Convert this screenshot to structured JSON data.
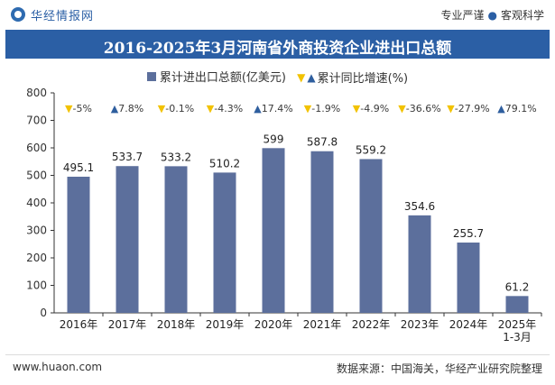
{
  "header": {
    "brand": "华经情报网",
    "tagline_left": "专业严谨",
    "tagline_right": "客观科学"
  },
  "chart_data": {
    "type": "bar",
    "title": "2016-2025年3月河南省外商投资企业进出口总额",
    "categories": [
      "2016年",
      "2017年",
      "2018年",
      "2019年",
      "2020年",
      "2021年",
      "2022年",
      "2023年",
      "2024年",
      "2025年\n1-3月"
    ],
    "series": [
      {
        "name": "累计进出口总额(亿美元)",
        "values": [
          495.1,
          533.7,
          533.2,
          510.2,
          599,
          587.8,
          559.2,
          354.6,
          255.7,
          61.2
        ],
        "value_labels": [
          "495.1",
          "533.7",
          "533.2",
          "510.2",
          "599",
          "587.8",
          "559.2",
          "354.6",
          "255.7",
          "61.2"
        ],
        "color": "#5c6f9c"
      },
      {
        "name": "累计同比增速(%)",
        "values": [
          -5,
          7.8,
          -0.1,
          -4.3,
          17.4,
          -1.9,
          -4.9,
          -36.6,
          -27.9,
          79.1
        ],
        "labels": [
          "-5%",
          "7.8%",
          "-0.1%",
          "-4.3%",
          "17.4%",
          "-1.9%",
          "-4.9%",
          "-36.6%",
          "-27.9%",
          "79.1%"
        ]
      }
    ],
    "ylim": [
      0,
      800
    ],
    "yticks": [
      "0",
      "100",
      "200",
      "300",
      "400",
      "500",
      "600",
      "700",
      "800"
    ],
    "grid": false,
    "legend_position": "top-center",
    "colors": {
      "bar": "#5c6f9c",
      "up_triangle": "#2e5e9e",
      "down_triangle": "#f2c200",
      "growth_text": "#3a3a3a"
    }
  },
  "footer": {
    "website": "www.huaon.com",
    "source": "数据来源：中国海关，华经产业研究院整理"
  }
}
